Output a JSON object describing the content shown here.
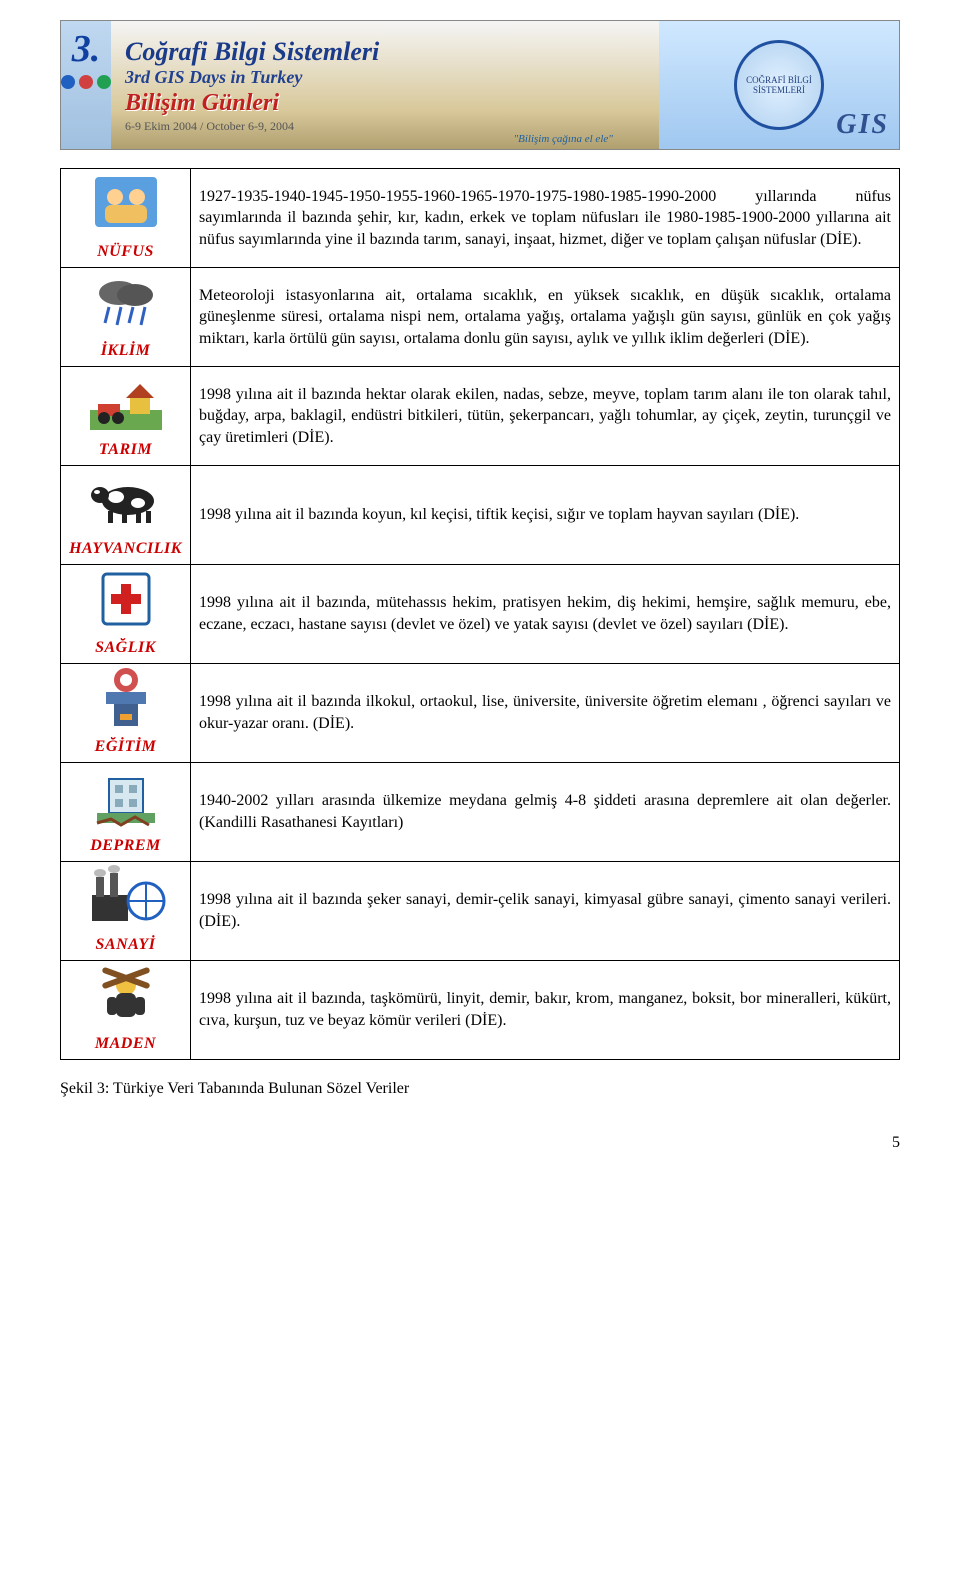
{
  "banner": {
    "corner_num": "3.",
    "title_line1": "Coğrafi Bilgi Sistemleri",
    "subtitle": "3rd GIS Days in Turkey",
    "bilisim_line": "Bilişim Günleri",
    "date_line": "6-9 Ekim 2004  / October 6-9, 2004",
    "slogan": "\"Bilişim çağına el ele\"",
    "gis_label": "GIS",
    "stamp_text": "COĞRAFİ BİLGİ SİSTEMLERİ",
    "circle_colors": [
      "#2060c0",
      "#d04040",
      "#20a050"
    ]
  },
  "rows": [
    {
      "label": "NÜFUS",
      "icon": "people",
      "desc": "1927-1935-1940-1945-1950-1955-1960-1965-1970-1975-1980-1985-1990-2000 yıllarında nüfus sayımlarında il bazında şehir, kır, kadın, erkek ve toplam nüfusları ile 1980-1985-1900-2000 yıllarına ait nüfus sayımlarında yine il bazında tarım, sanayi, inşaat, hizmet, diğer ve toplam çalışan nüfuslar (DİE)."
    },
    {
      "label": "İKLİM",
      "icon": "cloud",
      "desc": "Meteoroloji istasyonlarına ait, ortalama sıcaklık, en yüksek sıcaklık, en düşük sıcaklık, ortalama güneşlenme süresi, ortalama nispi nem, ortalama yağış, ortalama yağışlı gün sayısı, günlük en çok yağış miktarı, karla örtülü gün sayısı, ortalama donlu gün sayısı, aylık ve yıllık iklim değerleri (DİE)."
    },
    {
      "label": "TARIM",
      "icon": "farm",
      "desc": "1998 yılına ait il bazında hektar olarak ekilen, nadas, sebze, meyve, toplam tarım alanı ile ton olarak tahıl, buğday, arpa, baklagil, endüstri bitkileri, tütün, şekerpancarı, yağlı tohumlar, ay çiçek, zeytin, turunçgil ve çay üretimleri (DİE)."
    },
    {
      "label": "HAYVANCILIK",
      "icon": "cow",
      "desc": "1998 yılına ait il bazında koyun, kıl keçisi, tiftik keçisi, sığır ve toplam hayvan sayıları (DİE)."
    },
    {
      "label": "SAĞLIK",
      "icon": "health",
      "desc": "1998 yılına ait il bazında, mütehassıs hekim, pratisyen hekim, diş hekimi, hemşire, sağlık memuru, ebe, eczane, eczacı, hastane sayısı (devlet ve özel) ve yatak sayısı (devlet ve özel) sayıları (DİE)."
    },
    {
      "label": "EĞİTİM",
      "icon": "edu",
      "desc": "1998 yılına ait il bazında ilkokul, ortaokul, lise, üniversite, üniversite öğretim elemanı , öğrenci sayıları ve  okur-yazar oranı. (DİE)."
    },
    {
      "label": "DEPREM",
      "icon": "quake",
      "desc": "1940-2002  yılları arasında ülkemize meydana gelmiş 4-8 şiddeti arasına depremlere ait olan değerler. (Kandilli Rasathanesi Kayıtları)"
    },
    {
      "label": "SANAYİ",
      "icon": "ind",
      "desc": "1998 yılına ait il bazında şeker sanayi, demir-çelik sanayi, kimyasal gübre sanayi,  çimento sanayi verileri. (DİE)."
    },
    {
      "label": "MADEN",
      "icon": "mine",
      "desc": "1998 yılına ait il bazında, taşkömürü, linyit, demir, bakır, krom, manganez, boksit, bor mineralleri, kükürt, cıva, kurşun, tuz ve beyaz kömür verileri (DİE)."
    }
  ],
  "caption": "Şekil 3: Türkiye Veri Tabanında Bulunan Sözel Veriler",
  "page_number": "5",
  "colors": {
    "label_color": "#cc0000",
    "text_color": "#000000",
    "border_color": "#000000",
    "banner_title_color": "#1a3a8a",
    "banner_red": "#c02020"
  },
  "typography": {
    "body_font": "Times New Roman",
    "body_size_pt": 12,
    "label_weight": "bold",
    "label_style": "italic"
  }
}
